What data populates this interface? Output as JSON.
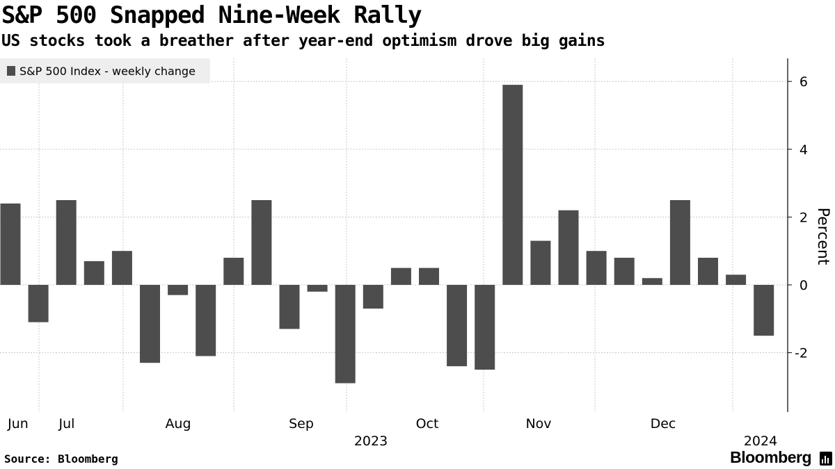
{
  "title": "S&P 500 Snapped Nine-Week Rally",
  "subtitle": "US stocks took a breather after year-end optimism drove big gains",
  "source": "Source: Bloomberg",
  "brand": "Bloomberg",
  "colors": {
    "bar": "#4d4d4d",
    "grid": "#c8c8c8",
    "legend_bg": "#eeeeee"
  },
  "chart_data": {
    "type": "bar",
    "legend": [
      "S&P 500 Index - weekly change"
    ],
    "legend_position": "top-left",
    "grid": true,
    "ylabel": "Percent",
    "ylim": [
      -3.1,
      6.7
    ],
    "yticks": [
      -2,
      0,
      2,
      4,
      6
    ],
    "month_labels": [
      "Jun",
      "Jul",
      "Aug",
      "Sep",
      "Oct",
      "Nov",
      "Dec"
    ],
    "year_labels": [
      "2023",
      "2024"
    ],
    "series": [
      {
        "name": "S&P 500 Index - weekly change",
        "values": [
          2.4,
          -1.1,
          2.5,
          0.7,
          1.0,
          -2.3,
          -0.3,
          -2.1,
          0.8,
          2.5,
          -1.3,
          -0.2,
          -2.9,
          -0.7,
          0.5,
          0.5,
          -2.4,
          -2.5,
          5.9,
          1.3,
          2.2,
          1.0,
          0.8,
          0.2,
          2.5,
          0.8,
          0.3,
          -1.5
        ]
      }
    ]
  }
}
